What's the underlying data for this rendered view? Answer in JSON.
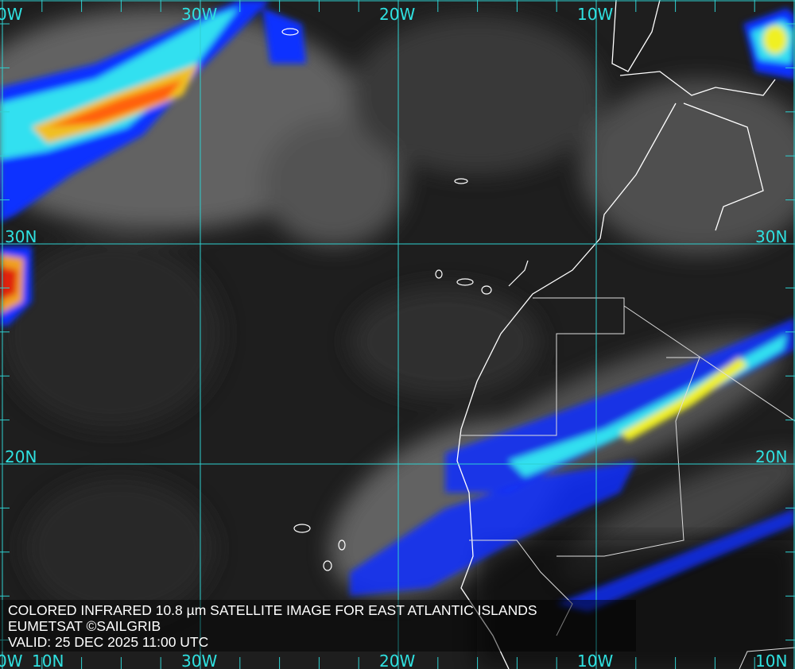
{
  "caption": {
    "title": "COLORED INFRARED 10.8 µm SATELLITE IMAGE FOR EAST ATLANTIC ISLANDS",
    "credit": "EUMETSAT ©SAILGRIB",
    "valid": "VALID:  25 DEC 2025 11:00 UTC"
  },
  "grid": {
    "top_lon_labels": [
      "0W",
      "30W",
      "20W",
      "10W"
    ],
    "bottom_lon_labels": [
      "0W",
      "30W",
      "20W",
      "10W"
    ],
    "left_lat_labels": [
      "30N",
      "20N",
      "10N"
    ],
    "right_lat_labels": [
      "30N",
      "20N",
      "10N"
    ],
    "line_color": "#2fd0d0"
  },
  "colors": {
    "cold_cloud_blue": "#1030ff",
    "cyan": "#30f0f0",
    "yellow": "#f0f020",
    "orange": "#ff8010",
    "red": "#e02010",
    "coastline": "#ffffff"
  }
}
